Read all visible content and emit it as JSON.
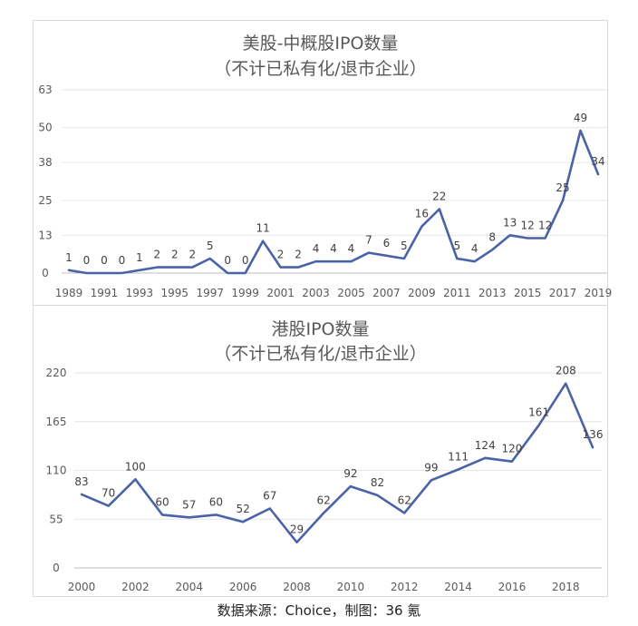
{
  "source_note": "数据来源：Choice，制图：36 氪",
  "chart_data": [
    {
      "type": "line",
      "title": "美股-中概股IPO数量",
      "subtitle": "（不计已私有化/退市企业）",
      "x": [
        1989,
        1990,
        1991,
        1992,
        1993,
        1994,
        1995,
        1996,
        1997,
        1998,
        1999,
        2000,
        2001,
        2002,
        2003,
        2004,
        2005,
        2006,
        2007,
        2008,
        2009,
        2010,
        2011,
        2012,
        2013,
        2014,
        2015,
        2016,
        2017,
        2018,
        2019
      ],
      "values": [
        1,
        0,
        0,
        0,
        1,
        2,
        2,
        2,
        5,
        0,
        0,
        11,
        2,
        2,
        4,
        4,
        4,
        7,
        6,
        5,
        16,
        22,
        5,
        4,
        8,
        13,
        12,
        12,
        25,
        49,
        34
      ],
      "xticks": [
        "1989",
        "1991",
        "1993",
        "1995",
        "1997",
        "1999",
        "2001",
        "2003",
        "2005",
        "2007",
        "2009",
        "2011",
        "2013",
        "2015",
        "2017",
        "2019"
      ],
      "yticks": [
        "0",
        "13",
        "25",
        "38",
        "50",
        "63"
      ],
      "ylim": [
        0,
        63
      ],
      "line_color": "#4a62a8",
      "grid": true
    },
    {
      "type": "line",
      "title": "港股IPO数量",
      "subtitle": "（不计已私有化/退市企业）",
      "x": [
        2000,
        2001,
        2002,
        2003,
        2004,
        2005,
        2006,
        2007,
        2008,
        2009,
        2010,
        2011,
        2012,
        2013,
        2014,
        2015,
        2016,
        2017,
        2018,
        2019
      ],
      "values": [
        83,
        70,
        100,
        60,
        57,
        60,
        52,
        67,
        29,
        62,
        92,
        82,
        62,
        99,
        111,
        124,
        120,
        161,
        208,
        136
      ],
      "xticks": [
        "2000",
        "2002",
        "2004",
        "2006",
        "2008",
        "2010",
        "2012",
        "2014",
        "2016",
        "2018"
      ],
      "yticks": [
        "0",
        "55",
        "110",
        "165",
        "220"
      ],
      "ylim": [
        0,
        220
      ],
      "line_color": "#4a62a8",
      "grid": true
    }
  ]
}
